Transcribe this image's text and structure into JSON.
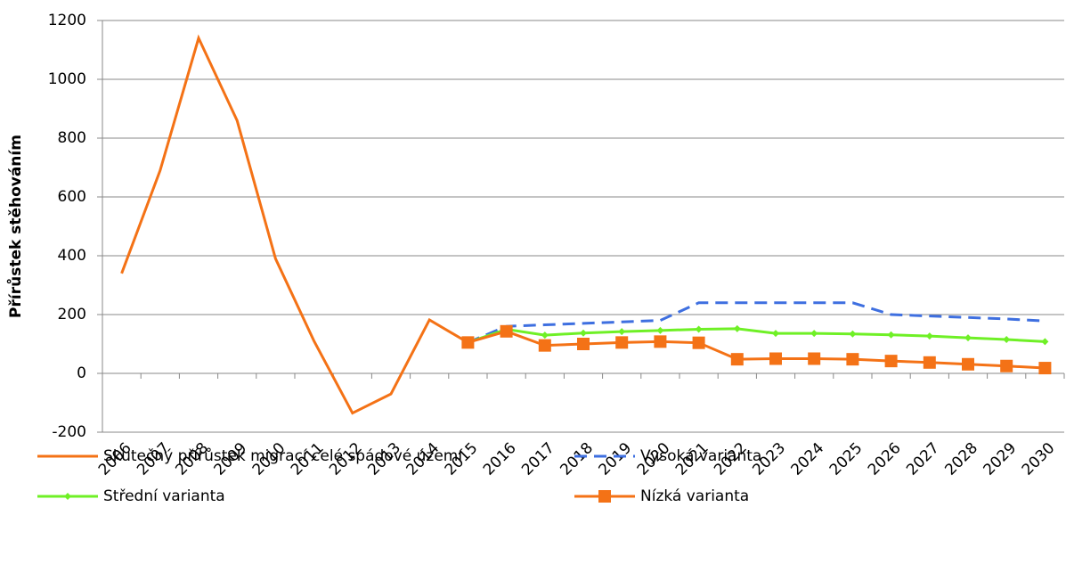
{
  "chart_data": {
    "type": "line",
    "y_label": "Přírůstek stěhováním",
    "categories": [
      "2006",
      "2007",
      "2008",
      "2009",
      "2010",
      "2011",
      "2012",
      "2013",
      "2014",
      "2015",
      "2016",
      "2017",
      "2018",
      "2019",
      "2020",
      "2021",
      "2022",
      "2023",
      "2024",
      "2025",
      "2026",
      "2027",
      "2028",
      "2029",
      "2030"
    ],
    "series": [
      {
        "name": "Skutečný přírůstek migrací celé spádové území",
        "color": "#f47216",
        "marker": "none",
        "dash": false,
        "values": [
          340,
          690,
          1140,
          860,
          390,
          110,
          -135,
          -70,
          182,
          105,
          null,
          null,
          null,
          null,
          null,
          null,
          null,
          null,
          null,
          null,
          null,
          null,
          null,
          null,
          null
        ]
      },
      {
        "name": "Vysoká varianta",
        "color": "#3e6fe0",
        "marker": "none",
        "dash": true,
        "values": [
          null,
          null,
          null,
          null,
          null,
          null,
          null,
          null,
          null,
          105,
          160,
          165,
          170,
          175,
          180,
          240,
          240,
          240,
          240,
          240,
          200,
          195,
          190,
          185,
          178
        ]
      },
      {
        "name": "Střední varianta",
        "color": "#6ff026",
        "marker": "diamond",
        "dash": false,
        "values": [
          null,
          null,
          null,
          null,
          null,
          null,
          null,
          null,
          null,
          105,
          150,
          130,
          137,
          142,
          146,
          150,
          152,
          136,
          136,
          134,
          131,
          127,
          121,
          115,
          108
        ]
      },
      {
        "name": "Nízká varianta",
        "color": "#f47216",
        "marker": "square",
        "dash": false,
        "values": [
          null,
          null,
          null,
          null,
          null,
          null,
          null,
          null,
          null,
          105,
          143,
          95,
          100,
          105,
          108,
          104,
          48,
          50,
          50,
          48,
          42,
          37,
          31,
          25,
          18
        ]
      }
    ],
    "ylim": [
      -200,
      1200
    ],
    "yticks": [
      -200,
      0,
      200,
      400,
      600,
      800,
      1000,
      1200
    ],
    "grid": true
  }
}
